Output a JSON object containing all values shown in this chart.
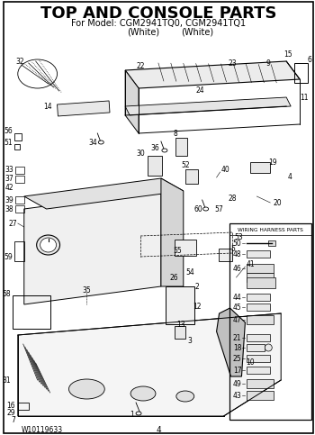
{
  "title": "TOP AND CONSOLE PARTS",
  "subtitle_line1": "For Model: CGM2941TQ0, CGM2941TQ1",
  "subtitle_line2_a": "(White)",
  "subtitle_line2_b": "(White)",
  "wiring_harness_title": "WIRING HARNESS PARTS",
  "footer_left": "W10119633",
  "footer_center": "4",
  "bg_color": "#ffffff",
  "border_color": "#000000",
  "text_color": "#000000",
  "title_fontsize": 13,
  "subtitle_fontsize": 7
}
